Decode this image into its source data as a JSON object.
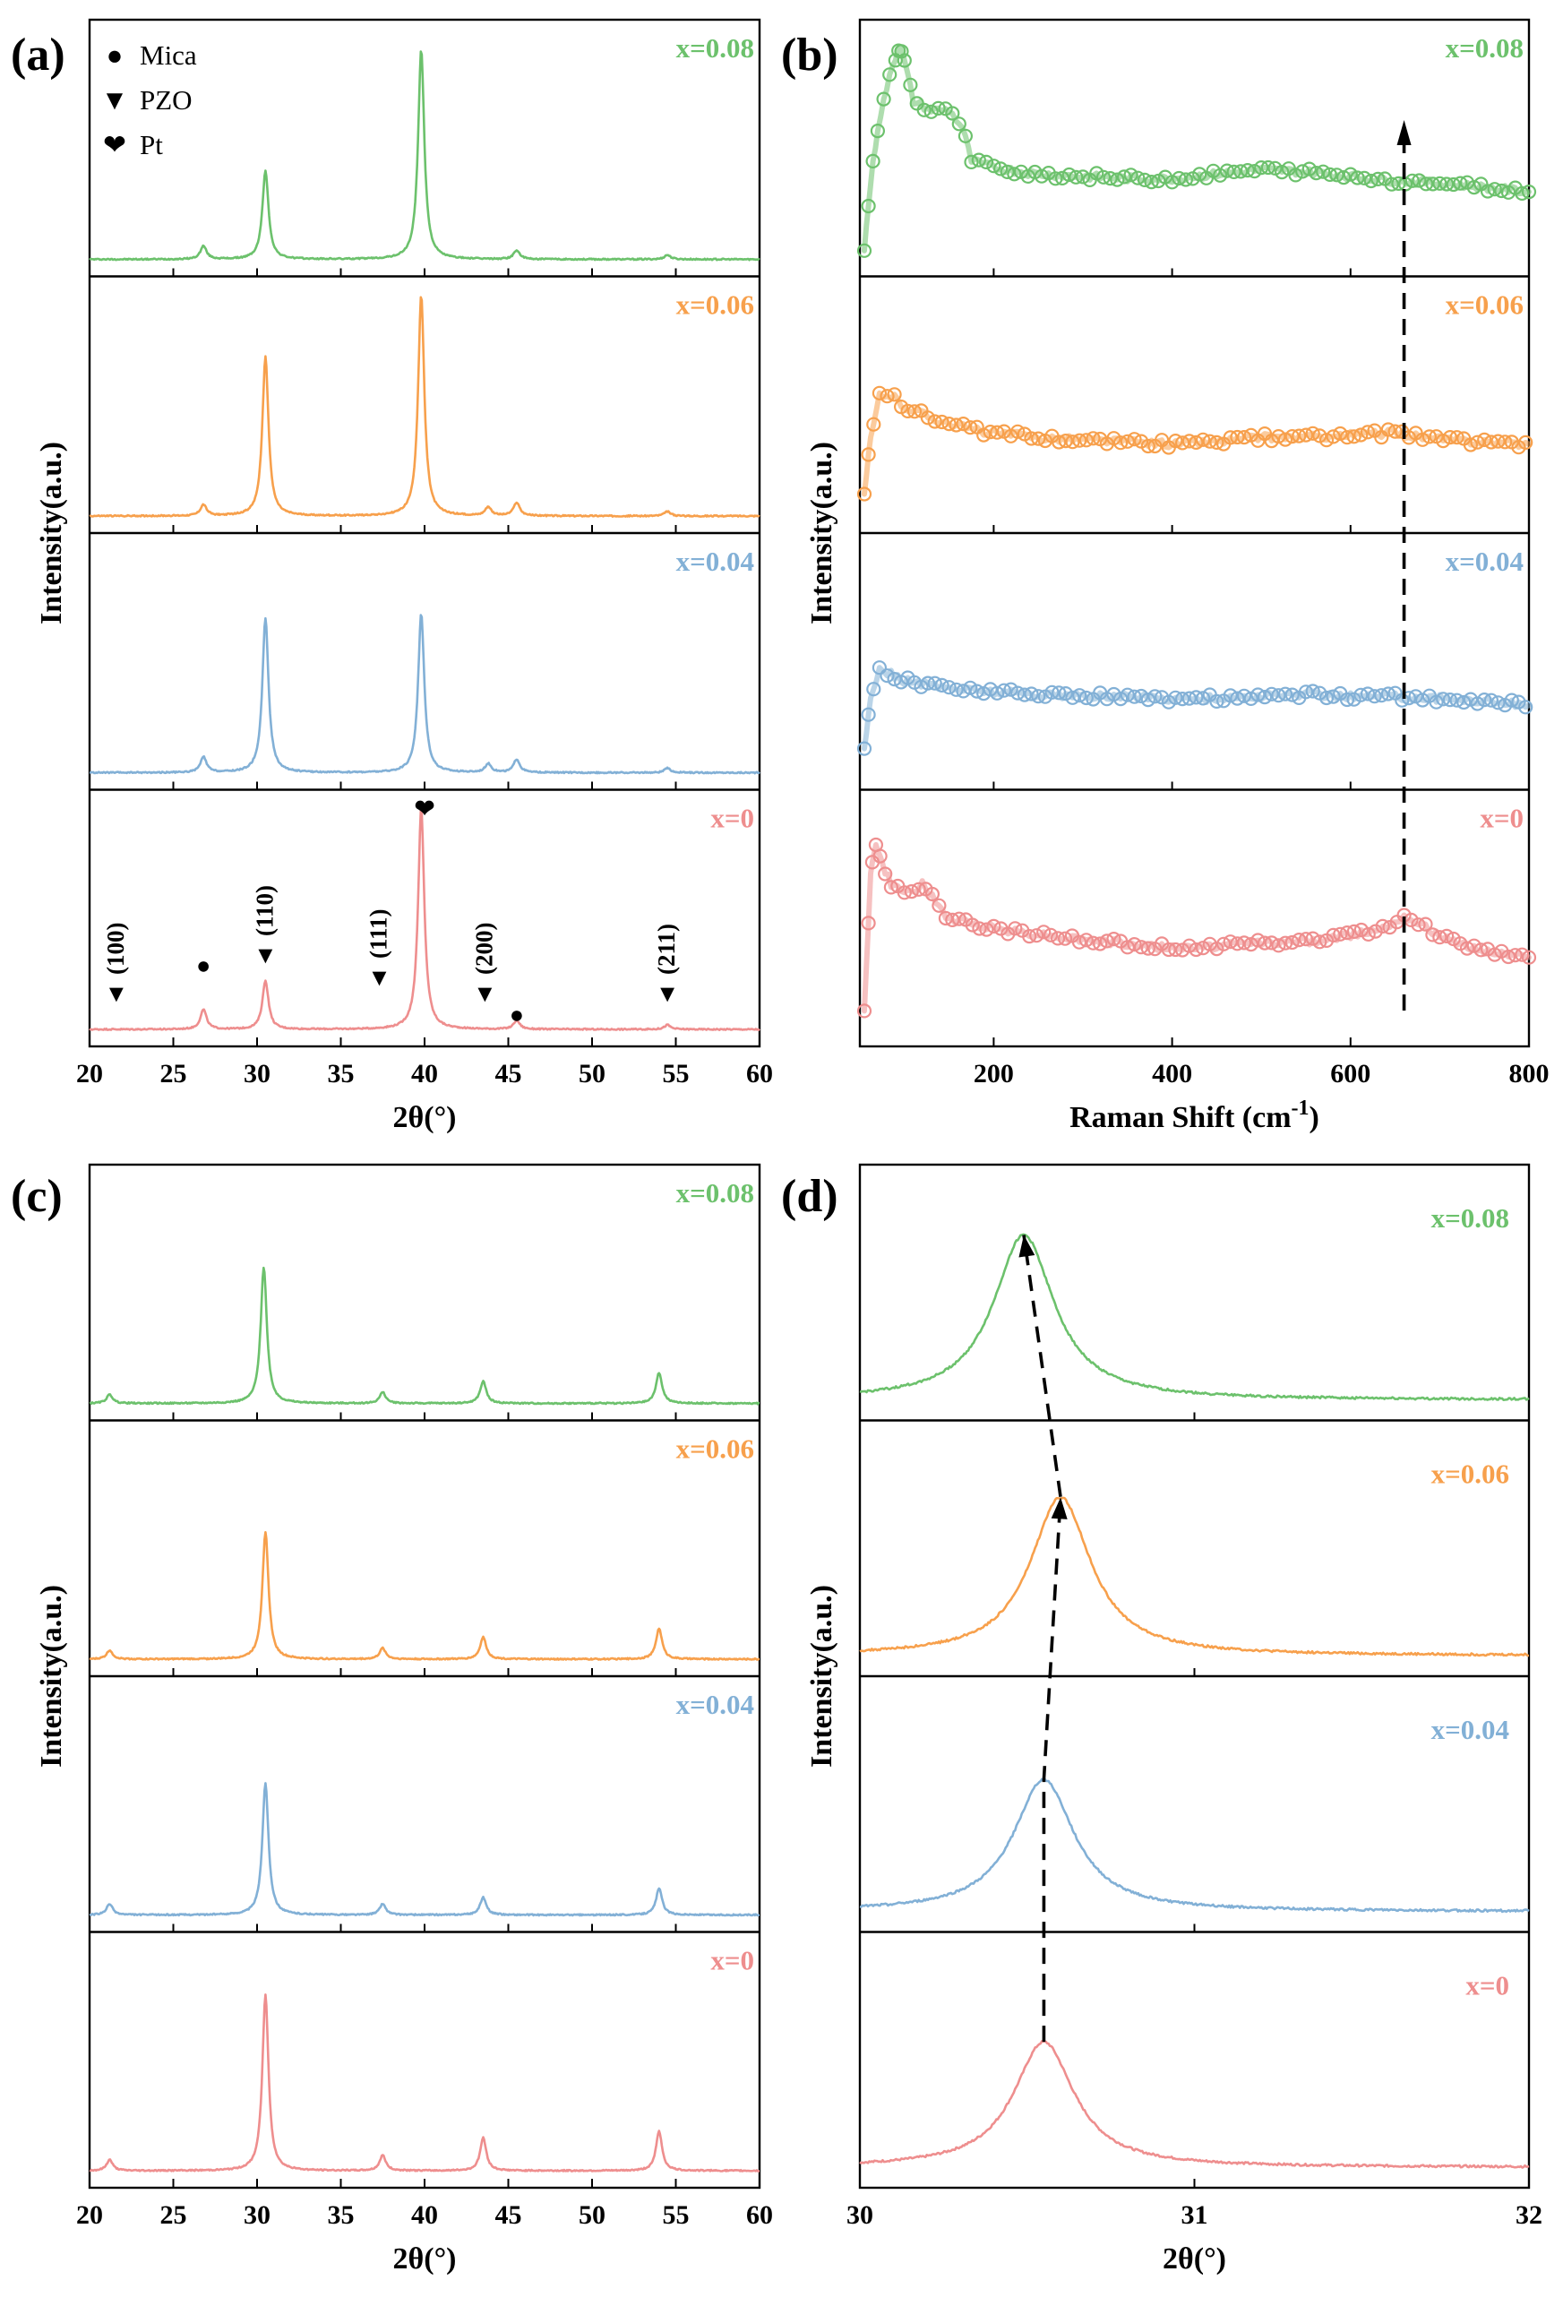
{
  "colors": {
    "x0": "#ee8e8e",
    "x004": "#82b0d6",
    "x006": "#f7a04c",
    "x008": "#6cc16c"
  },
  "chart_data": [
    {
      "panel": "(a)",
      "type": "line",
      "title": "",
      "xlabel": "2θ(°)",
      "ylabel": "Intensity(a.u.)",
      "xlim": [
        20,
        60
      ],
      "xticks": [
        20,
        25,
        30,
        35,
        40,
        45,
        50,
        55,
        60
      ],
      "legend": [
        {
          "symbol": "●",
          "label": "Mica"
        },
        {
          "symbol": "▼",
          "label": "PZO"
        },
        {
          "symbol": "❤",
          "label": "Pt"
        }
      ],
      "series": [
        {
          "name": "x=0.08",
          "color": "x008",
          "peaks": [
            [
              26.8,
              0.06
            ],
            [
              30.5,
              0.4
            ],
            [
              39.8,
              0.95
            ],
            [
              45.5,
              0.04
            ],
            [
              54.5,
              0.02
            ]
          ]
        },
        {
          "name": "x=0.06",
          "color": "x006",
          "peaks": [
            [
              26.8,
              0.05
            ],
            [
              30.5,
              0.72
            ],
            [
              39.8,
              1.0
            ],
            [
              43.8,
              0.04
            ],
            [
              45.5,
              0.06
            ],
            [
              54.5,
              0.02
            ]
          ]
        },
        {
          "name": "x=0.04",
          "color": "x004",
          "peaks": [
            [
              26.8,
              0.07
            ],
            [
              30.5,
              0.7
            ],
            [
              39.8,
              0.72
            ],
            [
              43.8,
              0.04
            ],
            [
              45.5,
              0.06
            ],
            [
              54.5,
              0.02
            ]
          ]
        },
        {
          "name": "x=0",
          "color": "x0",
          "peaks": [
            [
              26.8,
              0.09
            ],
            [
              30.5,
              0.22
            ],
            [
              39.8,
              1.0
            ],
            [
              45.5,
              0.04
            ],
            [
              54.5,
              0.02
            ]
          ]
        }
      ],
      "annotations": [
        {
          "x": 21.6,
          "label": "(100)",
          "marker": "▼"
        },
        {
          "x": 30.5,
          "label": "(110)",
          "marker": "▼"
        },
        {
          "x": 37.3,
          "label": "(111)",
          "marker": "▼"
        },
        {
          "x": 43.6,
          "label": "(200)",
          "marker": "▼"
        },
        {
          "x": 54.5,
          "label": "(211)",
          "marker": "▼"
        },
        {
          "x": 26.8,
          "label": "",
          "marker": "●"
        },
        {
          "x": 45.5,
          "label": "",
          "marker": "●"
        },
        {
          "x": 40.0,
          "label": "",
          "marker": "❤"
        }
      ]
    },
    {
      "panel": "(b)",
      "type": "scatter",
      "title": "",
      "xlabel": "Raman Shift (cm",
      "xlabel_sup": "-1",
      "xlabel_tail": ")",
      "ylabel": "Intensity(a.u.)",
      "xlim": [
        50,
        800
      ],
      "xticks": [
        200,
        400,
        600,
        800
      ],
      "guide_x": 660,
      "series": [
        {
          "name": "x=0.08",
          "color": "x008",
          "points": [
            [
              55,
              0.05
            ],
            [
              62,
              0.35
            ],
            [
              70,
              0.6
            ],
            [
              80,
              0.78
            ],
            [
              90,
              0.92
            ],
            [
              95,
              0.98
            ],
            [
              100,
              0.9
            ],
            [
              110,
              0.72
            ],
            [
              130,
              0.68
            ],
            [
              150,
              0.68
            ],
            [
              165,
              0.6
            ],
            [
              175,
              0.45
            ],
            [
              200,
              0.42
            ],
            [
              250,
              0.39
            ],
            [
              300,
              0.38
            ],
            [
              350,
              0.37
            ],
            [
              400,
              0.37
            ],
            [
              450,
              0.39
            ],
            [
              500,
              0.41
            ],
            [
              550,
              0.4
            ],
            [
              600,
              0.38
            ],
            [
              650,
              0.36
            ],
            [
              700,
              0.35
            ],
            [
              750,
              0.33
            ],
            [
              800,
              0.31
            ]
          ]
        },
        {
          "name": "x=0.06",
          "color": "x006",
          "points": [
            [
              55,
              0.1
            ],
            [
              62,
              0.35
            ],
            [
              72,
              0.55
            ],
            [
              85,
              0.55
            ],
            [
              100,
              0.5
            ],
            [
              130,
              0.45
            ],
            [
              170,
              0.4
            ],
            [
              200,
              0.38
            ],
            [
              250,
              0.36
            ],
            [
              300,
              0.35
            ],
            [
              350,
              0.34
            ],
            [
              400,
              0.33
            ],
            [
              450,
              0.34
            ],
            [
              500,
              0.36
            ],
            [
              550,
              0.36
            ],
            [
              600,
              0.37
            ],
            [
              650,
              0.38
            ],
            [
              700,
              0.35
            ],
            [
              750,
              0.34
            ],
            [
              800,
              0.33
            ]
          ]
        },
        {
          "name": "x=0.04",
          "color": "x004",
          "points": [
            [
              55,
              0.1
            ],
            [
              62,
              0.35
            ],
            [
              72,
              0.48
            ],
            [
              85,
              0.45
            ],
            [
              100,
              0.42
            ],
            [
              130,
              0.4
            ],
            [
              170,
              0.38
            ],
            [
              200,
              0.37
            ],
            [
              250,
              0.36
            ],
            [
              300,
              0.35
            ],
            [
              350,
              0.35
            ],
            [
              400,
              0.34
            ],
            [
              450,
              0.34
            ],
            [
              500,
              0.35
            ],
            [
              550,
              0.36
            ],
            [
              600,
              0.35
            ],
            [
              650,
              0.35
            ],
            [
              700,
              0.34
            ],
            [
              750,
              0.33
            ],
            [
              800,
              0.31
            ]
          ]
        },
        {
          "name": "x=0",
          "color": "x0",
          "points": [
            [
              55,
              0.1
            ],
            [
              62,
              0.7
            ],
            [
              68,
              0.85
            ],
            [
              75,
              0.75
            ],
            [
              85,
              0.66
            ],
            [
              100,
              0.62
            ],
            [
              120,
              0.66
            ],
            [
              135,
              0.58
            ],
            [
              150,
              0.5
            ],
            [
              180,
              0.48
            ],
            [
              220,
              0.45
            ],
            [
              260,
              0.43
            ],
            [
              300,
              0.41
            ],
            [
              350,
              0.39
            ],
            [
              400,
              0.37
            ],
            [
              450,
              0.38
            ],
            [
              500,
              0.4
            ],
            [
              550,
              0.4
            ],
            [
              600,
              0.43
            ],
            [
              640,
              0.47
            ],
            [
              660,
              0.52
            ],
            [
              680,
              0.48
            ],
            [
              700,
              0.42
            ],
            [
              750,
              0.36
            ],
            [
              800,
              0.33
            ]
          ]
        }
      ]
    },
    {
      "panel": "(c)",
      "type": "line",
      "title": "",
      "xlabel": "2θ(°)",
      "ylabel": "Intensity(a.u.)",
      "xlim": [
        20,
        60
      ],
      "xticks": [
        20,
        25,
        30,
        35,
        40,
        45,
        50,
        55,
        60
      ],
      "series": [
        {
          "name": "x=0.08",
          "color": "x008",
          "peaks": [
            [
              21.2,
              0.04
            ],
            [
              30.4,
              0.62
            ],
            [
              37.5,
              0.05
            ],
            [
              43.5,
              0.1
            ],
            [
              54.0,
              0.14
            ]
          ]
        },
        {
          "name": "x=0.06",
          "color": "x006",
          "peaks": [
            [
              21.2,
              0.04
            ],
            [
              30.5,
              0.58
            ],
            [
              37.5,
              0.05
            ],
            [
              43.5,
              0.1
            ],
            [
              54.0,
              0.14
            ]
          ]
        },
        {
          "name": "x=0.04",
          "color": "x004",
          "peaks": [
            [
              21.2,
              0.05
            ],
            [
              30.5,
              0.6
            ],
            [
              37.5,
              0.05
            ],
            [
              43.5,
              0.08
            ],
            [
              54.0,
              0.12
            ]
          ]
        },
        {
          "name": "x=0",
          "color": "x0",
          "peaks": [
            [
              21.2,
              0.05
            ],
            [
              30.5,
              0.8
            ],
            [
              37.5,
              0.07
            ],
            [
              43.5,
              0.15
            ],
            [
              54.0,
              0.18
            ]
          ]
        }
      ]
    },
    {
      "panel": "(d)",
      "type": "line",
      "title": "",
      "xlabel": "2θ(°)",
      "ylabel": "Intensity(a.u.)",
      "xlim": [
        30,
        32
      ],
      "xticks": [
        30,
        31,
        32
      ],
      "series": [
        {
          "name": "x=0.08",
          "color": "x008",
          "center": 30.49,
          "height": 0.75
        },
        {
          "name": "x=0.06",
          "color": "x006",
          "center": 30.6,
          "height": 0.72
        },
        {
          "name": "x=0.04",
          "color": "x004",
          "center": 30.55,
          "height": 0.6
        },
        {
          "name": "x=0",
          "color": "x0",
          "center": 30.55,
          "height": 0.57
        }
      ]
    }
  ]
}
